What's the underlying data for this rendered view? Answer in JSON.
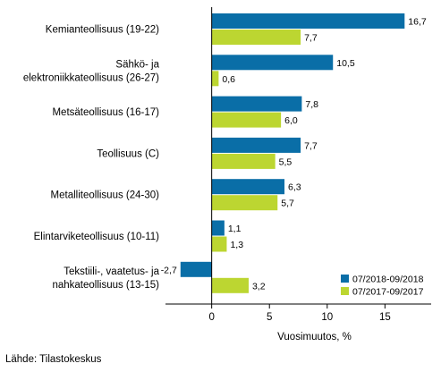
{
  "chart_data": {
    "type": "bar",
    "orientation": "horizontal",
    "categories": [
      [
        "Kemianteollisuus (19-22)"
      ],
      [
        "Sähkö- ja",
        "elektroniikkateollisuus (26-27)"
      ],
      [
        "Metsäteollisuus (16-17)"
      ],
      [
        "Teollisuus (C)"
      ],
      [
        "Metalliteollisuus (24-30)"
      ],
      [
        "Elintarviketeollisuus (10-11)"
      ],
      [
        "Tekstiili-, vaatetus- ja",
        "nahkateollisuus (13-15)"
      ]
    ],
    "series": [
      {
        "name": "07/2018-09/2018",
        "color": "#0a6ea7",
        "values": [
          16.7,
          10.5,
          7.8,
          7.7,
          6.3,
          1.1,
          -2.7
        ],
        "labels": [
          "16,7",
          "10,5",
          "7,8",
          "7,7",
          "6,3",
          "1,1",
          "-2,7"
        ]
      },
      {
        "name": "07/2017-09/2017",
        "color": "#bcd631",
        "values": [
          7.7,
          0.6,
          6.0,
          5.5,
          5.7,
          1.3,
          3.2
        ],
        "labels": [
          "7,7",
          "0,6",
          "6,0",
          "5,5",
          "5,7",
          "1,3",
          "3,2"
        ]
      }
    ],
    "xlabel": "Vuosimuutos, %",
    "xlim": [
      -4,
      19
    ],
    "xticks": [
      0,
      5,
      10,
      15
    ],
    "legend_position": "bottom-right",
    "grid": false
  },
  "source": "Lähde: Tilastokeskus"
}
